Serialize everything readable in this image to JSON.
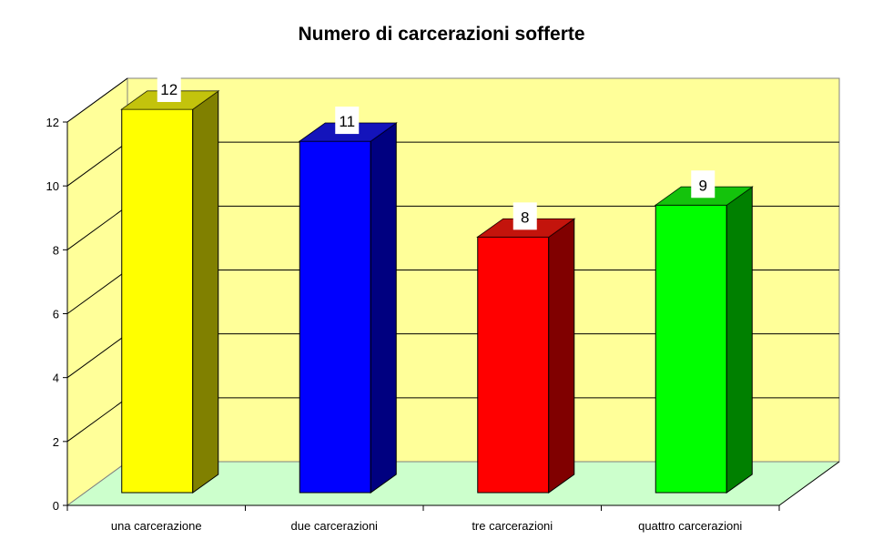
{
  "chart_data": {
    "type": "bar",
    "style": "3d-column",
    "title": "Numero di carcerazioni sofferte",
    "xlabel": "",
    "ylabel": "",
    "categories": [
      "una carcerazione",
      "due carcerazioni",
      "tre carcerazioni",
      "quattro carcerazioni"
    ],
    "values": [
      12,
      11,
      8,
      9
    ],
    "data_labels": [
      "12",
      "11",
      "8",
      "9"
    ],
    "colors": [
      "#ffff00",
      "#0000ff",
      "#ff0000",
      "#00ff00"
    ],
    "side_colors": [
      "#808000",
      "#000080",
      "#800000",
      "#008000"
    ],
    "ylim": [
      0,
      12
    ],
    "yticks": [
      0,
      2,
      4,
      6,
      8,
      10,
      12
    ],
    "grid": true,
    "legend": "none",
    "wall_color": "#ffff99",
    "floor_color": "#ccffcc"
  }
}
